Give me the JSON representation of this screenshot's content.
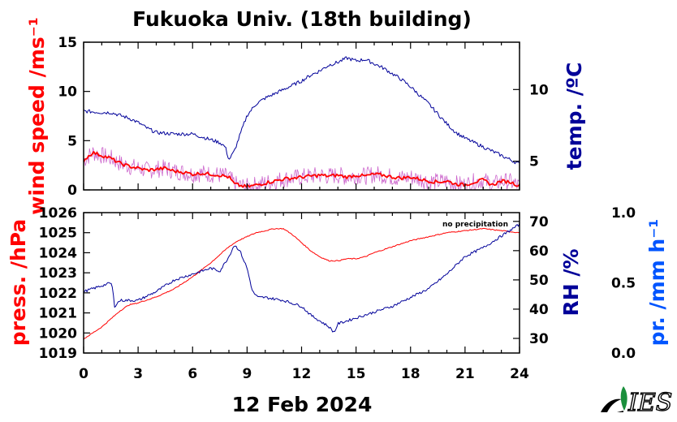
{
  "title": "Fukuoka Univ. (18th building)",
  "date_label": "12 Feb 2024",
  "colors": {
    "wind": "#ff0000",
    "wind_raw": "#cc66cc",
    "temp": "#000099",
    "press": "#ff0000",
    "rh": "#000099",
    "precip": "#0055ff"
  },
  "logo": {
    "icon": "ies-logo-icon",
    "text": "IES"
  },
  "chart_data": [
    {
      "type": "line",
      "title": "",
      "xlabel": "",
      "x_ticks": [],
      "xlim": [
        0,
        24
      ],
      "y_left": {
        "label": "wind speed /ms⁻¹",
        "ticks": [
          "0",
          "5",
          "10",
          "15"
        ],
        "lim": [
          0,
          15
        ]
      },
      "y_right": {
        "label": "temp. /ºC",
        "ticks": [
          "5",
          "10"
        ],
        "lim": [
          3,
          13.3
        ]
      },
      "series": [
        {
          "name": "wind speed (mean)",
          "axis": "left",
          "x": [
            0,
            0.5,
            1,
            1.5,
            2,
            2.5,
            3,
            3.5,
            4,
            4.5,
            5,
            5.5,
            6,
            6.5,
            7,
            7.5,
            8,
            8.3,
            8.7,
            9,
            9.5,
            10,
            10.5,
            11,
            11.5,
            12,
            12.5,
            13,
            13.5,
            14,
            14.5,
            15,
            15.5,
            16,
            16.5,
            17,
            17.5,
            18,
            18.5,
            19,
            19.5,
            20,
            20.5,
            21,
            21.5,
            22,
            22.5,
            23,
            23.5,
            24
          ],
          "y": [
            3.0,
            3.8,
            3.5,
            3.2,
            2.7,
            2.4,
            2.2,
            2.0,
            2.1,
            2.2,
            1.9,
            1.8,
            1.6,
            1.7,
            1.6,
            1.5,
            1.3,
            0.6,
            0.4,
            0.3,
            0.5,
            0.7,
            0.9,
            1.1,
            1.2,
            1.3,
            1.4,
            1.5,
            1.4,
            1.5,
            1.3,
            1.5,
            1.4,
            1.6,
            1.5,
            1.3,
            1.2,
            1.3,
            1.1,
            0.9,
            0.8,
            0.9,
            0.6,
            0.5,
            0.8,
            1.0,
            0.5,
            0.9,
            0.8,
            0.4
          ]
        },
        {
          "name": "temperature",
          "axis": "right",
          "x": [
            0,
            1,
            1.5,
            2,
            2.5,
            3,
            3.5,
            4,
            5,
            6,
            7,
            7.5,
            7.8,
            8.0,
            8.3,
            8.6,
            9,
            9.5,
            10,
            10.5,
            11,
            11.5,
            12,
            12.5,
            13,
            13.5,
            14,
            14.5,
            15,
            15.5,
            16,
            16.5,
            17,
            17.5,
            18,
            18.5,
            19,
            19.5,
            20,
            20.5,
            21,
            21.5,
            22,
            22.5,
            23,
            23.5,
            24
          ],
          "y": [
            8.5,
            8.4,
            8.4,
            8.2,
            8.0,
            7.7,
            7.3,
            7.0,
            6.9,
            6.9,
            6.5,
            6.3,
            6.0,
            5.1,
            5.7,
            6.8,
            8.2,
            9.0,
            9.4,
            9.7,
            10.0,
            10.3,
            10.6,
            11.0,
            11.3,
            11.7,
            11.9,
            12.2,
            12.0,
            12.1,
            11.8,
            11.5,
            11.1,
            10.7,
            10.2,
            9.6,
            9.0,
            8.3,
            7.6,
            7.0,
            6.6,
            6.3,
            6.0,
            5.7,
            5.4,
            5.1,
            4.8
          ]
        }
      ]
    },
    {
      "type": "line",
      "title": "",
      "xlabel": "12 Feb 2024",
      "x_ticks": [
        "0",
        "3",
        "6",
        "9",
        "12",
        "15",
        "18",
        "21",
        "24"
      ],
      "xlim": [
        0,
        24
      ],
      "y_left": {
        "label": "press. /hPa",
        "ticks": [
          "1019",
          "1020",
          "1021",
          "1022",
          "1023",
          "1024",
          "1025",
          "1026"
        ],
        "lim": [
          1019,
          1026
        ]
      },
      "y_right": {
        "label": "RH /%",
        "ticks": [
          "30",
          "40",
          "50",
          "60",
          "70"
        ],
        "lim": [
          25,
          73
        ]
      },
      "y_right2": {
        "label": "pr. /mm h⁻¹",
        "ticks": [
          "0.0",
          "0.5",
          "1.0"
        ],
        "lim": [
          0,
          1
        ]
      },
      "annotations": [
        "no precipitation"
      ],
      "series": [
        {
          "name": "pressure",
          "axis": "left",
          "x": [
            0,
            0.5,
            1,
            1.5,
            2,
            2.5,
            3,
            4,
            5,
            6,
            7,
            7.5,
            8,
            8.5,
            9,
            9.5,
            10,
            10.5,
            11,
            11.5,
            12,
            12.5,
            13,
            13.5,
            14,
            14.5,
            15,
            15.5,
            16,
            17,
            18,
            19,
            20,
            21,
            22,
            23,
            24
          ],
          "y": [
            1019.7,
            1020.0,
            1020.3,
            1020.7,
            1021.1,
            1021.4,
            1021.5,
            1021.8,
            1022.2,
            1022.8,
            1023.5,
            1023.9,
            1024.3,
            1024.6,
            1024.8,
            1025.0,
            1025.1,
            1025.2,
            1025.2,
            1024.9,
            1024.5,
            1024.1,
            1023.8,
            1023.6,
            1023.6,
            1023.7,
            1023.7,
            1023.8,
            1024.0,
            1024.3,
            1024.6,
            1024.8,
            1025.0,
            1025.1,
            1025.2,
            1025.1,
            1025.0
          ]
        },
        {
          "name": "relative humidity",
          "axis": "right",
          "x": [
            0,
            0.5,
            1,
            1.5,
            1.6,
            1.7,
            2,
            3,
            4,
            5,
            6,
            7,
            7.5,
            8,
            8.3,
            8.6,
            9,
            9.3,
            9.6,
            10,
            11,
            11.5,
            12,
            12.5,
            13,
            13.5,
            13.8,
            14,
            15,
            16,
            17,
            18,
            19,
            20,
            21,
            22,
            23,
            24
          ],
          "y": [
            46,
            47,
            48,
            49,
            47,
            41,
            43,
            43,
            46,
            50,
            52,
            54,
            53,
            58,
            62,
            60,
            54,
            46,
            44,
            44,
            43,
            42,
            41,
            38,
            36,
            34,
            32,
            35,
            37,
            39,
            41,
            44,
            47,
            52,
            58,
            61,
            65,
            69
          ]
        }
      ]
    }
  ]
}
